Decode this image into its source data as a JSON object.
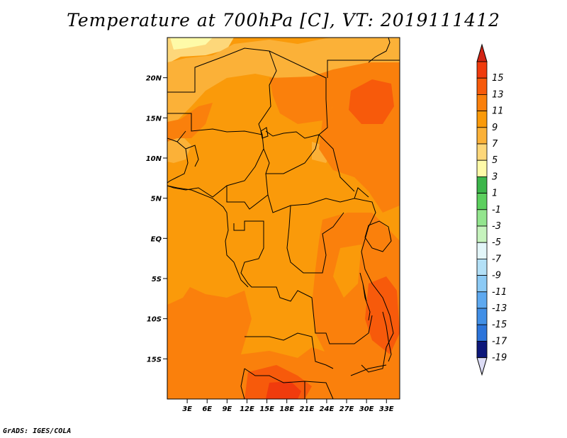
{
  "title": "Temperature at 700hPa [C], VT: 2019111412",
  "credit": "GrADS: IGES/COLA",
  "map": {
    "lon_range": [
      0,
      35
    ],
    "lat_range": [
      -20,
      25
    ],
    "lat_ticks": [
      {
        "value": 20,
        "label": "20N"
      },
      {
        "value": 15,
        "label": "15N"
      },
      {
        "value": 10,
        "label": "10N"
      },
      {
        "value": 5,
        "label": "5N"
      },
      {
        "value": 0,
        "label": "EQ"
      },
      {
        "value": -5,
        "label": "5S"
      },
      {
        "value": -10,
        "label": "10S"
      },
      {
        "value": -15,
        "label": "15S"
      }
    ],
    "lon_ticks": [
      {
        "value": 3,
        "label": "3E"
      },
      {
        "value": 6,
        "label": "6E"
      },
      {
        "value": 9,
        "label": "9E"
      },
      {
        "value": 12,
        "label": "12E"
      },
      {
        "value": 15,
        "label": "15E"
      },
      {
        "value": 18,
        "label": "18E"
      },
      {
        "value": 21,
        "label": "21E"
      },
      {
        "value": 24,
        "label": "24E"
      },
      {
        "value": 27,
        "label": "27E"
      },
      {
        "value": 30,
        "label": "30E"
      },
      {
        "value": 33,
        "label": "33E"
      }
    ],
    "base_color": "#fa9a0a"
  },
  "colorbar": {
    "levels": [
      {
        "label": "15",
        "color": "#f03b0d"
      },
      {
        "label": "13",
        "color": "#f75a0b"
      },
      {
        "label": "11",
        "color": "#fa800c"
      },
      {
        "label": "9",
        "color": "#fa9a0a"
      },
      {
        "label": "7",
        "color": "#fbb138"
      },
      {
        "label": "5",
        "color": "#fdd77a"
      },
      {
        "label": "3",
        "color": "#fefaa8"
      },
      {
        "label": "1",
        "color": "#3cb54a"
      },
      {
        "label": "-1",
        "color": "#5ccf5e"
      },
      {
        "label": "-3",
        "color": "#93e58e"
      },
      {
        "label": "-5",
        "color": "#c6f3bd"
      },
      {
        "label": "-7",
        "color": "#e3f6f9"
      },
      {
        "label": "-9",
        "color": "#b3e0f7"
      },
      {
        "label": "-11",
        "color": "#8ccaf5"
      },
      {
        "label": "-13",
        "color": "#5ea9f0"
      },
      {
        "label": "-15",
        "color": "#418fe6"
      },
      {
        "label": "-17",
        "color": "#2c74da"
      },
      {
        "label": "-19",
        "color": "#1a50c0"
      }
    ],
    "top_arrow_color": "#d22414",
    "bottom_arrow_color": "#dcdcf5",
    "bottom_segment_color": "#0c177a"
  }
}
